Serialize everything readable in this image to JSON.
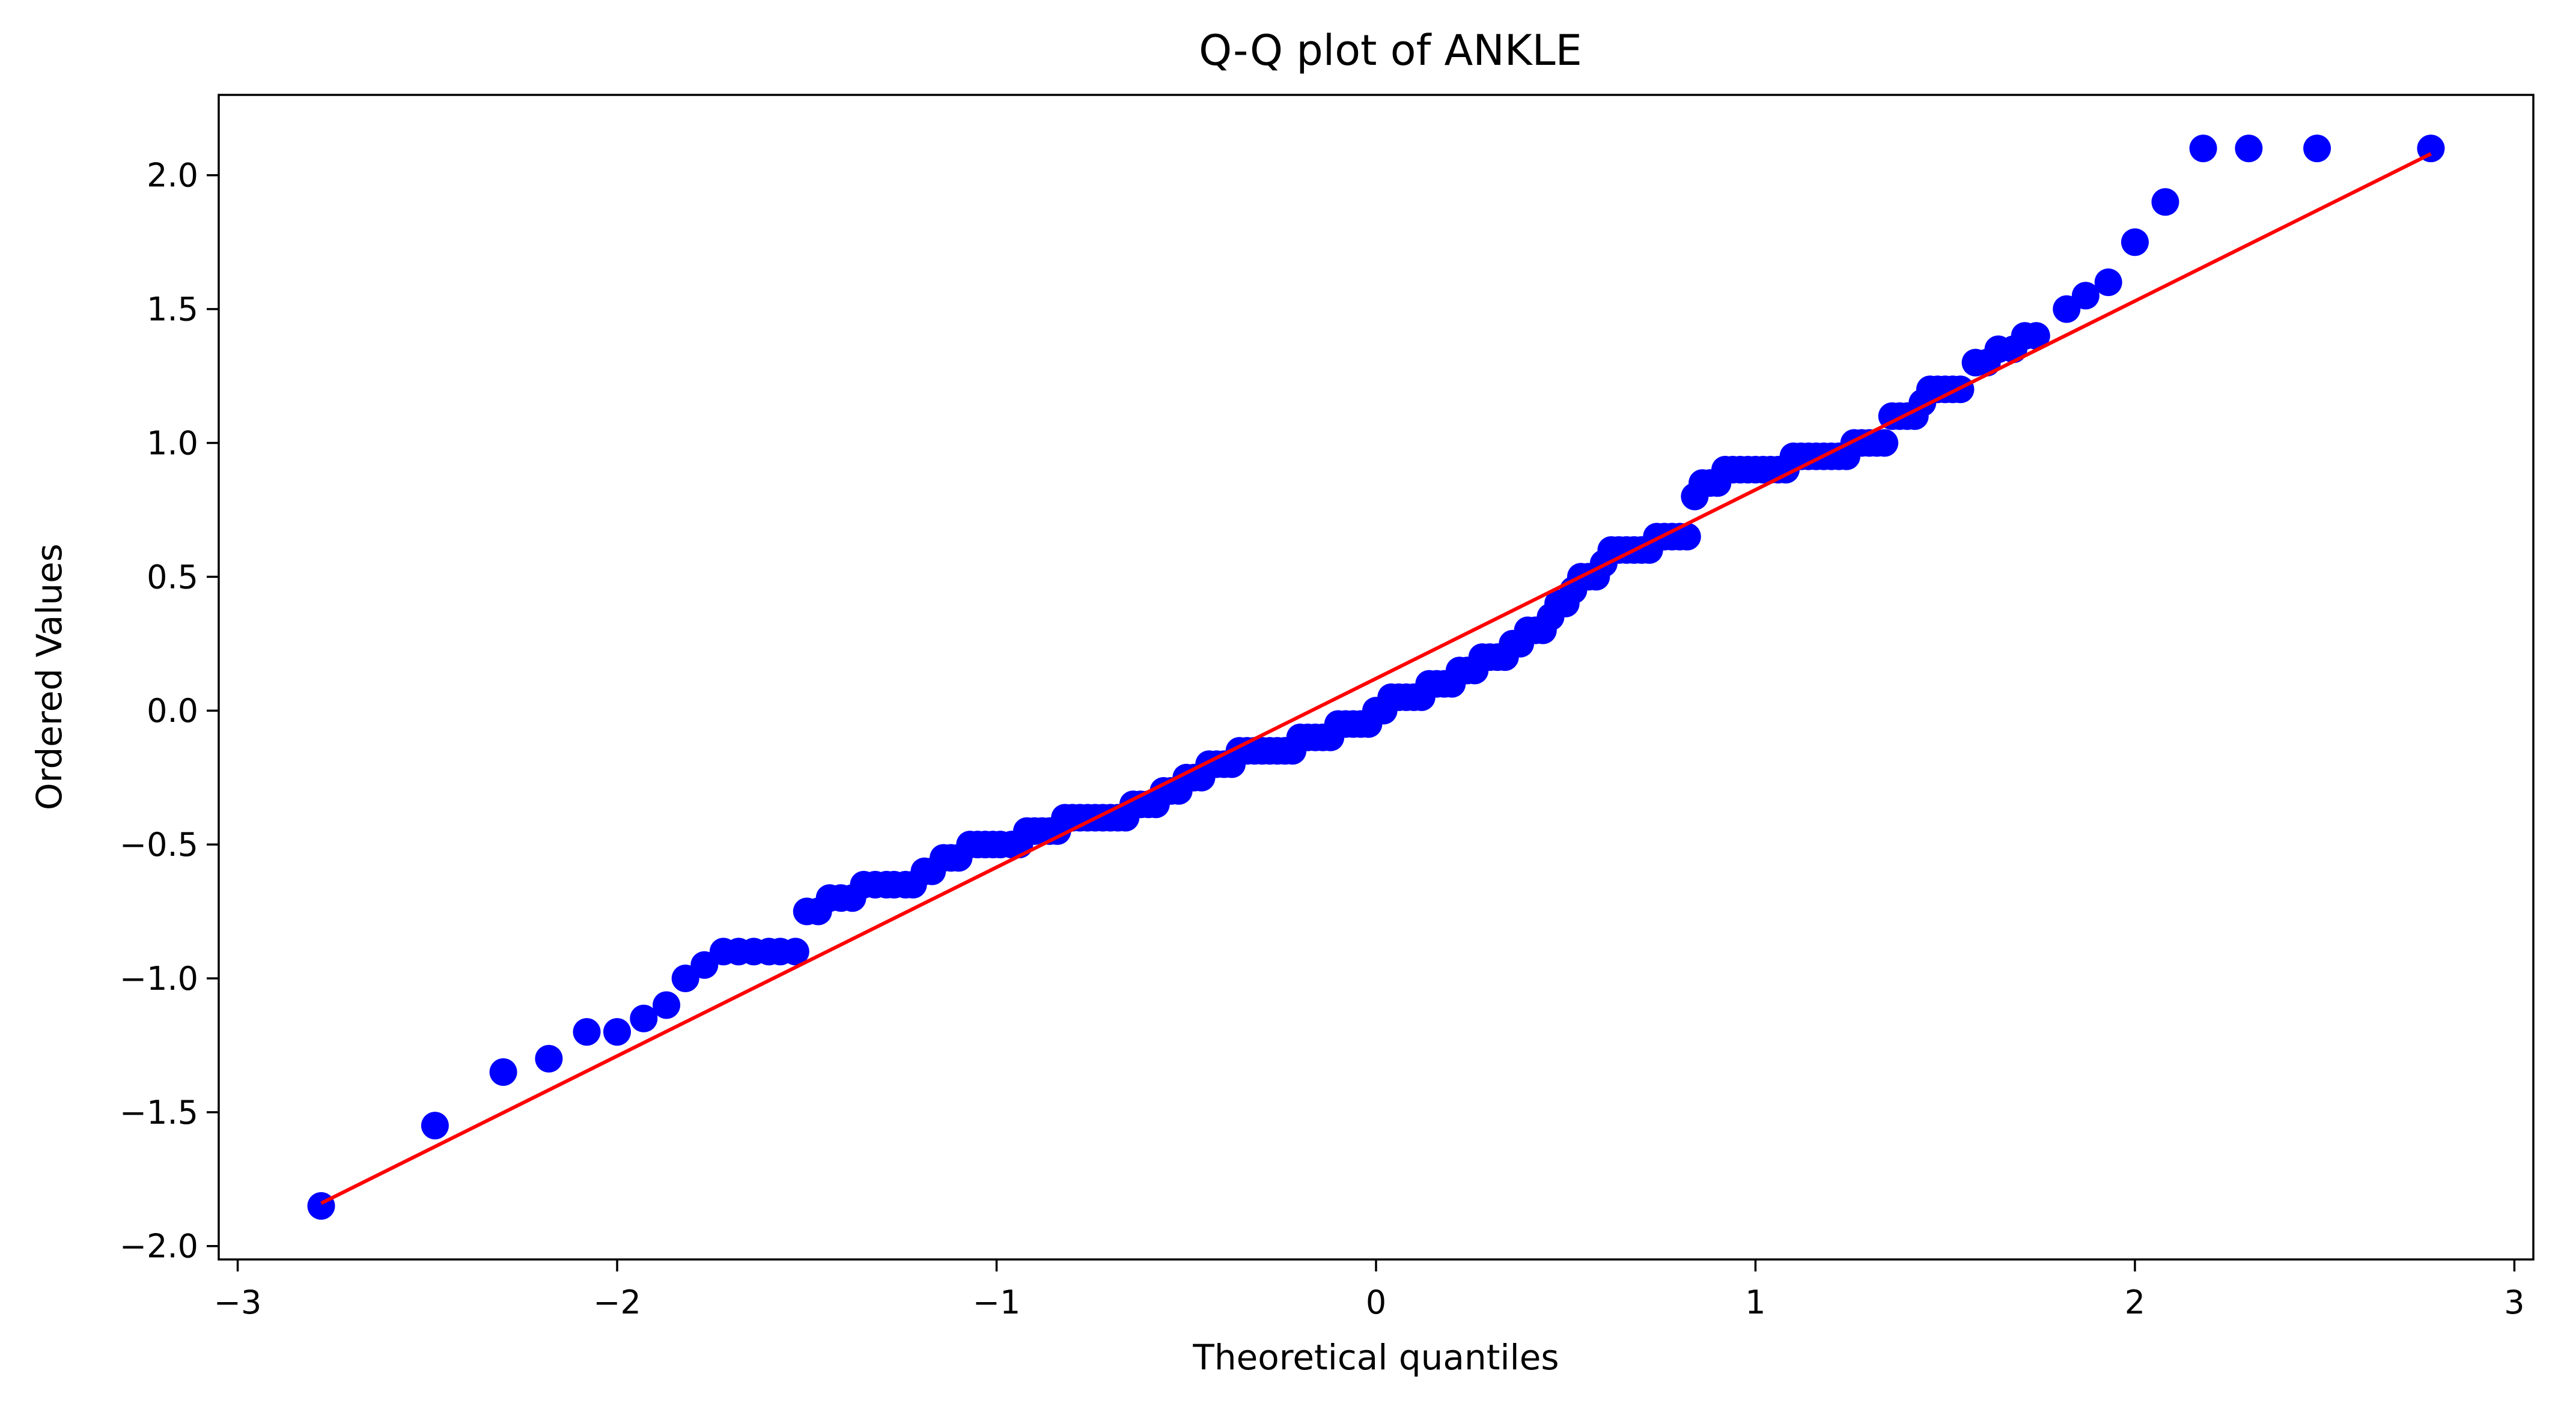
{
  "chart_data": {
    "type": "scatter",
    "title": "Q-Q plot of ANKLE",
    "xlabel": "Theoretical quantiles",
    "ylabel": "Ordered Values",
    "xlim": [
      -3.05,
      3.05
    ],
    "ylim": [
      -2.05,
      2.3
    ],
    "x_ticks": [
      {
        "value": -3,
        "label": "−3"
      },
      {
        "value": -2,
        "label": "−2"
      },
      {
        "value": -1,
        "label": "−1"
      },
      {
        "value": 0,
        "label": "0"
      },
      {
        "value": 1,
        "label": "1"
      },
      {
        "value": 2,
        "label": "2"
      },
      {
        "value": 3,
        "label": "3"
      }
    ],
    "y_ticks": [
      {
        "value": -2.0,
        "label": "−2.0"
      },
      {
        "value": -1.5,
        "label": "−1.5"
      },
      {
        "value": -1.0,
        "label": "−1.0"
      },
      {
        "value": -0.5,
        "label": "−0.5"
      },
      {
        "value": 0.0,
        "label": "0.0"
      },
      {
        "value": 0.5,
        "label": "0.5"
      },
      {
        "value": 1.0,
        "label": "1.0"
      },
      {
        "value": 1.5,
        "label": "1.5"
      },
      {
        "value": 2.0,
        "label": "2.0"
      }
    ],
    "grid": false,
    "colors": {
      "points": "#0000ff",
      "fit_line": "#ff0000"
    },
    "fit_line": {
      "x": [
        -2.78,
        2.78
      ],
      "y": [
        -1.84,
        2.08
      ]
    },
    "points": [
      [
        -2.78,
        -1.85
      ],
      [
        -2.48,
        -1.55
      ],
      [
        -2.3,
        -1.35
      ],
      [
        -2.18,
        -1.3
      ],
      [
        -2.08,
        -1.2
      ],
      [
        -2.0,
        -1.2
      ],
      [
        -1.93,
        -1.15
      ],
      [
        -1.87,
        -1.1
      ],
      [
        -1.82,
        -1.0
      ],
      [
        -1.77,
        -0.95
      ],
      [
        -1.72,
        -0.9
      ],
      [
        -1.68,
        -0.9
      ],
      [
        -1.64,
        -0.9
      ],
      [
        -1.6,
        -0.9
      ],
      [
        -1.57,
        -0.9
      ],
      [
        -1.53,
        -0.9
      ],
      [
        -1.5,
        -0.75
      ],
      [
        -1.47,
        -0.75
      ],
      [
        -1.44,
        -0.7
      ],
      [
        -1.41,
        -0.7
      ],
      [
        -1.38,
        -0.7
      ],
      [
        -1.35,
        -0.65
      ],
      [
        -1.32,
        -0.65
      ],
      [
        -1.29,
        -0.65
      ],
      [
        -1.27,
        -0.65
      ],
      [
        -1.24,
        -0.65
      ],
      [
        -1.22,
        -0.65
      ],
      [
        -1.19,
        -0.6
      ],
      [
        -1.17,
        -0.6
      ],
      [
        -1.14,
        -0.55
      ],
      [
        -1.12,
        -0.55
      ],
      [
        -1.1,
        -0.55
      ],
      [
        -1.07,
        -0.5
      ],
      [
        -1.05,
        -0.5
      ],
      [
        -1.03,
        -0.5
      ],
      [
        -1.01,
        -0.5
      ],
      [
        -0.99,
        -0.5
      ],
      [
        -0.96,
        -0.5
      ],
      [
        -0.94,
        -0.5
      ],
      [
        -0.92,
        -0.45
      ],
      [
        -0.9,
        -0.45
      ],
      [
        -0.88,
        -0.45
      ],
      [
        -0.86,
        -0.45
      ],
      [
        -0.84,
        -0.45
      ],
      [
        -0.82,
        -0.4
      ],
      [
        -0.8,
        -0.4
      ],
      [
        -0.78,
        -0.4
      ],
      [
        -0.76,
        -0.4
      ],
      [
        -0.74,
        -0.4
      ],
      [
        -0.72,
        -0.4
      ],
      [
        -0.7,
        -0.4
      ],
      [
        -0.68,
        -0.4
      ],
      [
        -0.66,
        -0.4
      ],
      [
        -0.64,
        -0.35
      ],
      [
        -0.62,
        -0.35
      ],
      [
        -0.6,
        -0.35
      ],
      [
        -0.58,
        -0.35
      ],
      [
        -0.56,
        -0.3
      ],
      [
        -0.54,
        -0.3
      ],
      [
        -0.52,
        -0.3
      ],
      [
        -0.5,
        -0.25
      ],
      [
        -0.48,
        -0.25
      ],
      [
        -0.46,
        -0.25
      ],
      [
        -0.44,
        -0.2
      ],
      [
        -0.42,
        -0.2
      ],
      [
        -0.4,
        -0.2
      ],
      [
        -0.38,
        -0.2
      ],
      [
        -0.36,
        -0.15
      ],
      [
        -0.34,
        -0.15
      ],
      [
        -0.32,
        -0.15
      ],
      [
        -0.3,
        -0.15
      ],
      [
        -0.28,
        -0.15
      ],
      [
        -0.26,
        -0.15
      ],
      [
        -0.24,
        -0.15
      ],
      [
        -0.22,
        -0.15
      ],
      [
        -0.2,
        -0.1
      ],
      [
        -0.18,
        -0.1
      ],
      [
        -0.16,
        -0.1
      ],
      [
        -0.14,
        -0.1
      ],
      [
        -0.12,
        -0.1
      ],
      [
        -0.1,
        -0.05
      ],
      [
        -0.08,
        -0.05
      ],
      [
        -0.06,
        -0.05
      ],
      [
        -0.04,
        -0.05
      ],
      [
        -0.02,
        -0.05
      ],
      [
        0.0,
        0.0
      ],
      [
        0.02,
        0.0
      ],
      [
        0.04,
        0.05
      ],
      [
        0.06,
        0.05
      ],
      [
        0.08,
        0.05
      ],
      [
        0.1,
        0.05
      ],
      [
        0.12,
        0.05
      ],
      [
        0.14,
        0.1
      ],
      [
        0.16,
        0.1
      ],
      [
        0.18,
        0.1
      ],
      [
        0.2,
        0.1
      ],
      [
        0.22,
        0.15
      ],
      [
        0.24,
        0.15
      ],
      [
        0.26,
        0.15
      ],
      [
        0.28,
        0.2
      ],
      [
        0.3,
        0.2
      ],
      [
        0.32,
        0.2
      ],
      [
        0.34,
        0.2
      ],
      [
        0.36,
        0.25
      ],
      [
        0.38,
        0.25
      ],
      [
        0.4,
        0.3
      ],
      [
        0.42,
        0.3
      ],
      [
        0.44,
        0.3
      ],
      [
        0.46,
        0.35
      ],
      [
        0.48,
        0.4
      ],
      [
        0.5,
        0.4
      ],
      [
        0.52,
        0.45
      ],
      [
        0.54,
        0.5
      ],
      [
        0.56,
        0.5
      ],
      [
        0.58,
        0.5
      ],
      [
        0.6,
        0.55
      ],
      [
        0.62,
        0.6
      ],
      [
        0.64,
        0.6
      ],
      [
        0.66,
        0.6
      ],
      [
        0.68,
        0.6
      ],
      [
        0.7,
        0.6
      ],
      [
        0.72,
        0.6
      ],
      [
        0.74,
        0.65
      ],
      [
        0.76,
        0.65
      ],
      [
        0.78,
        0.65
      ],
      [
        0.8,
        0.65
      ],
      [
        0.82,
        0.65
      ],
      [
        0.84,
        0.8
      ],
      [
        0.86,
        0.85
      ],
      [
        0.88,
        0.85
      ],
      [
        0.9,
        0.85
      ],
      [
        0.92,
        0.9
      ],
      [
        0.94,
        0.9
      ],
      [
        0.96,
        0.9
      ],
      [
        0.98,
        0.9
      ],
      [
        1.0,
        0.9
      ],
      [
        1.02,
        0.9
      ],
      [
        1.04,
        0.9
      ],
      [
        1.06,
        0.9
      ],
      [
        1.08,
        0.9
      ],
      [
        1.1,
        0.95
      ],
      [
        1.12,
        0.95
      ],
      [
        1.14,
        0.95
      ],
      [
        1.16,
        0.95
      ],
      [
        1.18,
        0.95
      ],
      [
        1.2,
        0.95
      ],
      [
        1.22,
        0.95
      ],
      [
        1.24,
        0.95
      ],
      [
        1.26,
        1.0
      ],
      [
        1.28,
        1.0
      ],
      [
        1.3,
        1.0
      ],
      [
        1.32,
        1.0
      ],
      [
        1.34,
        1.0
      ],
      [
        1.36,
        1.1
      ],
      [
        1.38,
        1.1
      ],
      [
        1.4,
        1.1
      ],
      [
        1.42,
        1.1
      ],
      [
        1.44,
        1.15
      ],
      [
        1.46,
        1.2
      ],
      [
        1.48,
        1.2
      ],
      [
        1.5,
        1.2
      ],
      [
        1.52,
        1.2
      ],
      [
        1.54,
        1.2
      ],
      [
        1.58,
        1.3
      ],
      [
        1.61,
        1.3
      ],
      [
        1.64,
        1.35
      ],
      [
        1.68,
        1.35
      ],
      [
        1.71,
        1.4
      ],
      [
        1.74,
        1.4
      ],
      [
        1.82,
        1.5
      ],
      [
        1.87,
        1.55
      ],
      [
        1.93,
        1.6
      ],
      [
        2.0,
        1.75
      ],
      [
        2.08,
        1.9
      ],
      [
        2.18,
        2.1
      ],
      [
        2.3,
        2.1
      ],
      [
        2.48,
        2.1
      ],
      [
        2.78,
        2.1
      ]
    ]
  }
}
